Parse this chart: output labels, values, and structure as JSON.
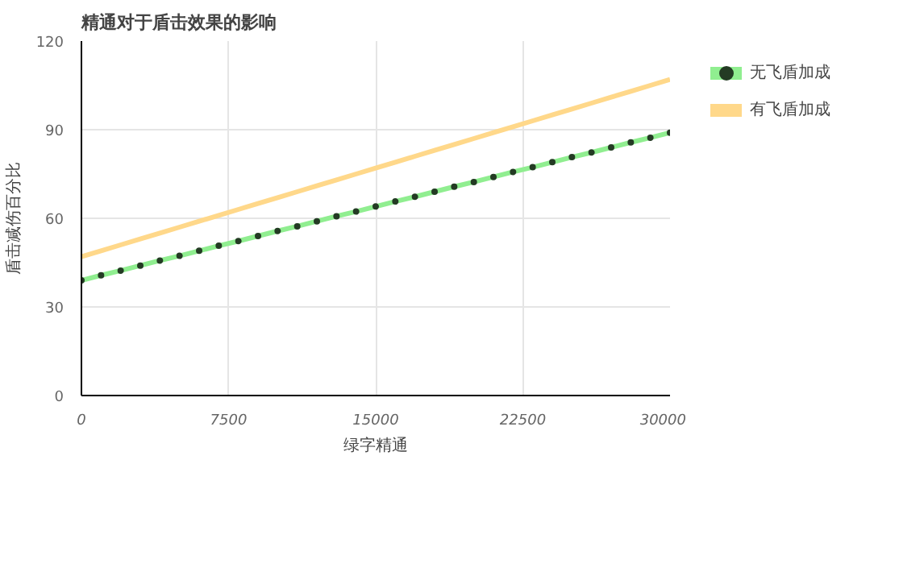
{
  "chart_data": {
    "type": "line",
    "title": "精通对于盾击效果的影响",
    "xlabel": "绿字精通",
    "ylabel": "盾击减伤百分比",
    "x": [
      0,
      1000,
      2000,
      3000,
      4000,
      5000,
      6000,
      7000,
      8000,
      9000,
      10000,
      11000,
      12000,
      13000,
      14000,
      15000,
      16000,
      17000,
      18000,
      19000,
      20000,
      21000,
      22000,
      23000,
      24000,
      25000,
      26000,
      27000,
      28000,
      29000,
      30000
    ],
    "series": [
      {
        "name": "无飞盾加成",
        "color": "#90ee90",
        "marker": "circle",
        "values": [
          39,
          40.7,
          42.3,
          44,
          45.7,
          47.3,
          49,
          50.7,
          52.3,
          54,
          55.7,
          57.3,
          59,
          60.7,
          62.3,
          64,
          65.7,
          67.3,
          69,
          70.7,
          72.3,
          74,
          75.7,
          77.3,
          79,
          80.7,
          82.3,
          84,
          85.7,
          87.3,
          89
        ]
      },
      {
        "name": "有飞盾加成",
        "color": "#ffd88a",
        "marker": "none",
        "values": [
          47,
          49,
          51,
          53,
          55,
          57,
          59,
          61,
          63,
          65,
          67,
          69,
          71,
          73,
          75,
          77,
          79,
          81,
          83,
          85,
          87,
          89,
          91,
          93,
          95,
          97,
          99,
          101,
          103,
          105,
          107
        ]
      }
    ],
    "xlim": [
      0,
      30000
    ],
    "xticks": [
      0,
      7500,
      15000,
      22500,
      30000
    ],
    "ylim": [
      0,
      120
    ],
    "yticks": [
      0,
      30,
      60,
      90,
      120
    ],
    "grid": true,
    "legend": "right"
  }
}
